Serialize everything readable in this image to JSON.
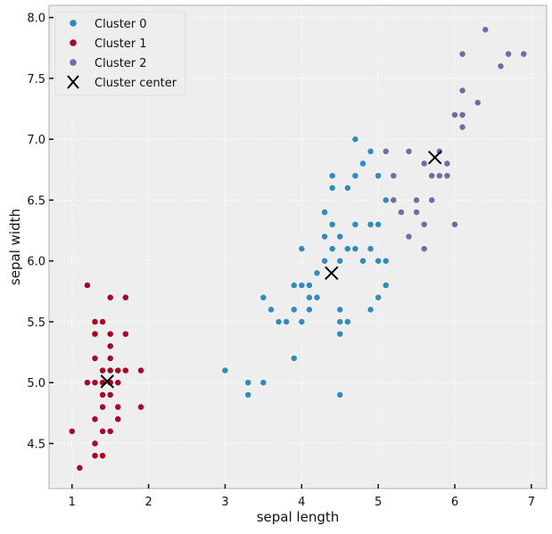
{
  "chart_data": {
    "type": "scatter",
    "title": "",
    "xlabel": "sepal length",
    "ylabel": "sepal width",
    "xlim": [
      0.7,
      7.2
    ],
    "ylim": [
      4.13,
      8.1
    ],
    "xticks": [
      1,
      2,
      3,
      4,
      5,
      6,
      7
    ],
    "yticks": [
      4.5,
      5.0,
      5.5,
      6.0,
      6.5,
      7.0,
      7.5,
      8.0
    ],
    "xtick_labels": [
      "1",
      "2",
      "3",
      "4",
      "5",
      "6",
      "7"
    ],
    "ytick_labels": [
      "4.5",
      "5.0",
      "5.5",
      "6.0",
      "6.5",
      "7.0",
      "7.5",
      "8.0"
    ],
    "grid": true,
    "legend_position": "top-left",
    "series": [
      {
        "name": "Cluster 0",
        "color": "#348abd",
        "marker": "circle",
        "points": [
          [
            3.0,
            5.1
          ],
          [
            3.3,
            5.0
          ],
          [
            3.3,
            4.9
          ],
          [
            3.5,
            5.0
          ],
          [
            3.5,
            5.7
          ],
          [
            3.6,
            5.6
          ],
          [
            3.7,
            5.5
          ],
          [
            3.8,
            5.5
          ],
          [
            3.9,
            5.8
          ],
          [
            3.9,
            5.6
          ],
          [
            3.9,
            5.2
          ],
          [
            4.0,
            6.1
          ],
          [
            4.0,
            5.8
          ],
          [
            4.0,
            5.5
          ],
          [
            4.1,
            5.8
          ],
          [
            4.1,
            5.7
          ],
          [
            4.1,
            5.6
          ],
          [
            4.2,
            5.7
          ],
          [
            4.2,
            5.9
          ],
          [
            4.3,
            6.4
          ],
          [
            4.3,
            6.2
          ],
          [
            4.3,
            6.0
          ],
          [
            4.4,
            6.7
          ],
          [
            4.4,
            6.6
          ],
          [
            4.4,
            6.3
          ],
          [
            4.4,
            6.1
          ],
          [
            4.5,
            6.2
          ],
          [
            4.5,
            6.0
          ],
          [
            4.5,
            5.6
          ],
          [
            4.5,
            5.5
          ],
          [
            4.5,
            5.4
          ],
          [
            4.5,
            4.9
          ],
          [
            4.6,
            6.6
          ],
          [
            4.6,
            6.1
          ],
          [
            4.6,
            5.5
          ],
          [
            4.7,
            7.0
          ],
          [
            4.7,
            6.7
          ],
          [
            4.7,
            6.3
          ],
          [
            4.7,
            6.1
          ],
          [
            4.8,
            6.8
          ],
          [
            4.8,
            6.0
          ],
          [
            4.8,
            6.0
          ],
          [
            4.9,
            6.9
          ],
          [
            4.9,
            6.3
          ],
          [
            4.9,
            6.1
          ],
          [
            4.9,
            5.6
          ],
          [
            5.0,
            6.0
          ],
          [
            5.0,
            6.3
          ],
          [
            5.0,
            5.7
          ],
          [
            5.1,
            6.5
          ],
          [
            5.1,
            6.0
          ],
          [
            5.1,
            5.8
          ],
          [
            5.0,
            6.7
          ]
        ]
      },
      {
        "name": "Cluster 1",
        "color": "#a60628",
        "marker": "circle",
        "points": [
          [
            1.0,
            4.6
          ],
          [
            1.1,
            4.3
          ],
          [
            1.2,
            5.8
          ],
          [
            1.2,
            5.0
          ],
          [
            1.3,
            5.5
          ],
          [
            1.3,
            5.4
          ],
          [
            1.3,
            5.2
          ],
          [
            1.3,
            5.0
          ],
          [
            1.3,
            4.7
          ],
          [
            1.3,
            4.5
          ],
          [
            1.3,
            4.4
          ],
          [
            1.4,
            5.5
          ],
          [
            1.4,
            5.1
          ],
          [
            1.4,
            5.0
          ],
          [
            1.4,
            4.9
          ],
          [
            1.4,
            4.8
          ],
          [
            1.4,
            4.6
          ],
          [
            1.4,
            4.4
          ],
          [
            1.5,
            5.7
          ],
          [
            1.5,
            5.4
          ],
          [
            1.5,
            5.3
          ],
          [
            1.5,
            5.2
          ],
          [
            1.5,
            5.1
          ],
          [
            1.5,
            5.0
          ],
          [
            1.5,
            4.9
          ],
          [
            1.5,
            4.6
          ],
          [
            1.6,
            5.1
          ],
          [
            1.6,
            5.0
          ],
          [
            1.6,
            4.8
          ],
          [
            1.6,
            4.7
          ],
          [
            1.7,
            5.7
          ],
          [
            1.7,
            5.4
          ],
          [
            1.7,
            5.1
          ],
          [
            1.9,
            5.1
          ],
          [
            1.9,
            4.8
          ]
        ]
      },
      {
        "name": "Cluster 2",
        "color": "#7a68a6",
        "marker": "circle",
        "points": [
          [
            5.1,
            6.9
          ],
          [
            5.2,
            6.5
          ],
          [
            5.2,
            6.7
          ],
          [
            5.4,
            6.9
          ],
          [
            5.3,
            6.4
          ],
          [
            5.4,
            6.2
          ],
          [
            5.5,
            6.4
          ],
          [
            5.6,
            6.8
          ],
          [
            5.6,
            6.3
          ],
          [
            5.6,
            6.1
          ],
          [
            5.7,
            6.7
          ],
          [
            5.7,
            6.5
          ],
          [
            5.8,
            6.7
          ],
          [
            5.8,
            6.9
          ],
          [
            5.9,
            6.8
          ],
          [
            5.9,
            6.7
          ],
          [
            6.0,
            7.2
          ],
          [
            6.0,
            6.3
          ],
          [
            6.1,
            7.7
          ],
          [
            6.1,
            7.4
          ],
          [
            6.1,
            7.2
          ],
          [
            6.3,
            7.3
          ],
          [
            6.4,
            7.9
          ],
          [
            6.6,
            7.6
          ],
          [
            6.7,
            7.7
          ],
          [
            6.9,
            7.7
          ],
          [
            6.1,
            7.1
          ],
          [
            5.5,
            6.5
          ]
        ]
      }
    ],
    "centers": {
      "name": "Cluster center",
      "color": "#000000",
      "marker": "x",
      "points": [
        [
          4.39,
          5.9
        ],
        [
          1.46,
          5.01
        ],
        [
          5.74,
          6.85
        ]
      ]
    }
  }
}
